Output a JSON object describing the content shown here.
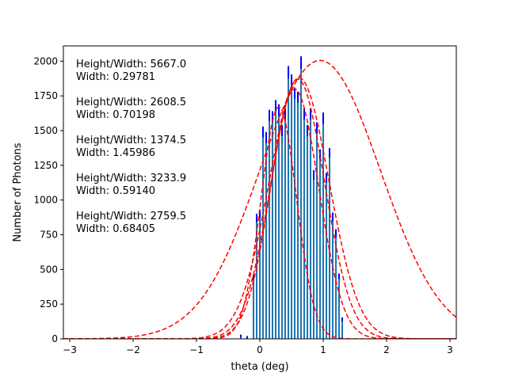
{
  "chart_data": {
    "type": "bar",
    "title": "",
    "xlabel": "theta (deg)",
    "ylabel": "Number of Photons",
    "xlim": [
      -3.1,
      3.1
    ],
    "ylim": [
      0,
      2110
    ],
    "xticks": [
      -3,
      -2,
      -1,
      0,
      1,
      2,
      3
    ],
    "xtick_labels": [
      "−3",
      "−2",
      "−1",
      "0",
      "1",
      "2",
      "3"
    ],
    "yticks": [
      0,
      250,
      500,
      750,
      1000,
      1250,
      1500,
      1750,
      2000
    ],
    "ytick_labels": [
      "0",
      "250",
      "500",
      "750",
      "1000",
      "1250",
      "1500",
      "1750",
      "2000"
    ],
    "bar_color": "#1f77b4",
    "errorbar_color": "#0000ff",
    "fit_color": "#ff0000",
    "bars": {
      "x": [
        -0.3,
        -0.2,
        -0.1,
        -0.05,
        0.0,
        0.05,
        0.1,
        0.15,
        0.2,
        0.25,
        0.3,
        0.35,
        0.4,
        0.45,
        0.5,
        0.55,
        0.6,
        0.65,
        0.7,
        0.75,
        0.8,
        0.85,
        0.9,
        0.95,
        1.0,
        1.05,
        1.1,
        1.15,
        1.2,
        1.25,
        1.3
      ],
      "values": [
        20,
        10,
        440,
        870,
        900,
        1490,
        1450,
        1610,
        1600,
        1680,
        1650,
        1500,
        1620,
        1920,
        1860,
        1770,
        1740,
        1990,
        1620,
        1500,
        1620,
        1180,
        1520,
        1330,
        1590,
        1160,
        1340,
        880,
        760,
        450,
        140
      ],
      "errors": [
        10,
        10,
        20,
        30,
        30,
        40,
        40,
        40,
        40,
        40,
        40,
        40,
        40,
        45,
        45,
        40,
        40,
        45,
        40,
        40,
        40,
        35,
        40,
        35,
        40,
        35,
        35,
        30,
        30,
        20,
        15
      ]
    },
    "fits": [
      {
        "amplitude": 1800,
        "center": 0.55,
        "sigma": 0.38
      },
      {
        "amplitude": 1870,
        "center": 0.6,
        "sigma": 0.42
      },
      {
        "amplitude": 1880,
        "center": 0.62,
        "sigma": 0.47
      },
      {
        "amplitude": 1670,
        "center": 0.3,
        "sigma": 0.28
      },
      {
        "amplitude": 2005,
        "center": 0.95,
        "sigma": 0.95
      }
    ],
    "annotations": [
      {
        "line1": "Height/Width: 5667.0",
        "line2": "Width: 0.29781"
      },
      {
        "line1": "Height/Width: 2608.5",
        "line2": "Width: 0.70198"
      },
      {
        "line1": "Height/Width: 1374.5",
        "line2": "Width: 1.45986"
      },
      {
        "line1": "Height/Width: 3233.9",
        "line2": "Width: 0.59140"
      },
      {
        "line1": "Height/Width: 2759.5",
        "line2": "Width: 0.68405"
      }
    ]
  }
}
